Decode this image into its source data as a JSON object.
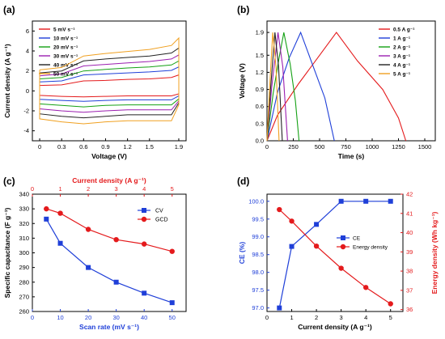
{
  "chart_data": [
    {
      "panel": "(a)",
      "type": "line",
      "xlabel": "Voltage (V)",
      "ylabel": "Current density (A g⁻¹)",
      "xlim": [
        -0.1,
        2.0
      ],
      "ylim": [
        -5,
        7
      ],
      "xticks": [
        "0",
        "0.3",
        "0.6",
        "0.9",
        "1.2",
        "1.5",
        "1.9"
      ],
      "xtick_values": [
        0,
        0.3,
        0.6,
        0.9,
        1.2,
        1.5,
        1.9
      ],
      "yticks": [
        -4,
        -2,
        0,
        2,
        4,
        6
      ],
      "legend_position": "top-left",
      "series": [
        {
          "name": "5 mV s⁻¹",
          "color": "#e41a1c",
          "upper": [
            [
              0,
              0.55
            ],
            [
              0.3,
              0.6
            ],
            [
              0.6,
              1.0
            ],
            [
              0.9,
              1.05
            ],
            [
              1.2,
              1.15
            ],
            [
              1.5,
              1.2
            ],
            [
              1.8,
              1.35
            ],
            [
              1.9,
              1.6
            ]
          ],
          "lower": [
            [
              1.9,
              -0.3
            ],
            [
              1.8,
              -0.5
            ],
            [
              1.5,
              -0.5
            ],
            [
              1.2,
              -0.5
            ],
            [
              0.9,
              -0.55
            ],
            [
              0.6,
              -0.6
            ],
            [
              0.3,
              -0.55
            ],
            [
              0,
              -0.45
            ]
          ]
        },
        {
          "name": "10 mV s⁻¹",
          "color": "#1f3fd8",
          "upper": [
            [
              0,
              0.9
            ],
            [
              0.3,
              1.0
            ],
            [
              0.6,
              1.6
            ],
            [
              0.9,
              1.7
            ],
            [
              1.2,
              1.8
            ],
            [
              1.5,
              1.9
            ],
            [
              1.8,
              2.05
            ],
            [
              1.9,
              2.4
            ]
          ],
          "lower": [
            [
              1.9,
              -0.5
            ],
            [
              1.8,
              -0.9
            ],
            [
              1.5,
              -0.9
            ],
            [
              1.2,
              -0.9
            ],
            [
              0.9,
              -0.95
            ],
            [
              0.6,
              -1.05
            ],
            [
              0.3,
              -0.95
            ],
            [
              0,
              -0.85
            ]
          ]
        },
        {
          "name": "20 mV s⁻¹",
          "color": "#14a114",
          "upper": [
            [
              0,
              1.2
            ],
            [
              0.3,
              1.35
            ],
            [
              0.6,
              2.0
            ],
            [
              0.9,
              2.15
            ],
            [
              1.2,
              2.3
            ],
            [
              1.5,
              2.4
            ],
            [
              1.8,
              2.6
            ],
            [
              1.9,
              3.0
            ]
          ],
          "lower": [
            [
              1.9,
              -0.8
            ],
            [
              1.8,
              -1.4
            ],
            [
              1.5,
              -1.4
            ],
            [
              1.2,
              -1.4
            ],
            [
              0.9,
              -1.45
            ],
            [
              0.6,
              -1.6
            ],
            [
              0.3,
              -1.45
            ],
            [
              0,
              -1.3
            ]
          ]
        },
        {
          "name": "30 mV s⁻¹",
          "color": "#9b1fb0",
          "upper": [
            [
              0,
              1.5
            ],
            [
              0.3,
              1.7
            ],
            [
              0.6,
              2.5
            ],
            [
              0.9,
              2.65
            ],
            [
              1.2,
              2.8
            ],
            [
              1.5,
              2.95
            ],
            [
              1.8,
              3.2
            ],
            [
              1.9,
              3.6
            ]
          ],
          "lower": [
            [
              1.9,
              -1.0
            ],
            [
              1.8,
              -1.9
            ],
            [
              1.5,
              -1.9
            ],
            [
              1.2,
              -1.9
            ],
            [
              0.9,
              -2.0
            ],
            [
              0.6,
              -2.15
            ],
            [
              0.3,
              -2.0
            ],
            [
              0,
              -1.8
            ]
          ]
        },
        {
          "name": "40 mV s⁻¹",
          "color": "#222222",
          "upper": [
            [
              0,
              1.8
            ],
            [
              0.3,
              2.0
            ],
            [
              0.6,
              3.0
            ],
            [
              0.9,
              3.2
            ],
            [
              1.2,
              3.35
            ],
            [
              1.5,
              3.5
            ],
            [
              1.8,
              3.8
            ],
            [
              1.9,
              4.3
            ]
          ],
          "lower": [
            [
              1.9,
              -1.2
            ],
            [
              1.8,
              -2.4
            ],
            [
              1.5,
              -2.4
            ],
            [
              1.2,
              -2.4
            ],
            [
              0.9,
              -2.55
            ],
            [
              0.6,
              -2.7
            ],
            [
              0.3,
              -2.55
            ],
            [
              0,
              -2.3
            ]
          ]
        },
        {
          "name": "50 mV s⁻¹",
          "color": "#f0a020",
          "upper": [
            [
              0,
              2.1
            ],
            [
              0.3,
              2.35
            ],
            [
              0.6,
              3.5
            ],
            [
              0.9,
              3.75
            ],
            [
              1.2,
              3.95
            ],
            [
              1.5,
              4.15
            ],
            [
              1.8,
              4.55
            ],
            [
              1.9,
              5.3
            ]
          ],
          "lower": [
            [
              1.9,
              -1.4
            ],
            [
              1.8,
              -3.0
            ],
            [
              1.5,
              -3.0
            ],
            [
              1.2,
              -3.0
            ],
            [
              0.9,
              -3.1
            ],
            [
              0.6,
              -3.3
            ],
            [
              0.3,
              -3.1
            ],
            [
              0,
              -2.8
            ]
          ]
        }
      ]
    },
    {
      "panel": "(b)",
      "type": "line",
      "xlabel": "Time (s)",
      "ylabel": "Voltage (V)",
      "xlim": [
        0,
        1600
      ],
      "ylim": [
        0,
        2.1
      ],
      "xticks": [
        0,
        250,
        500,
        750,
        1000,
        1250,
        1500
      ],
      "yticks": [
        "0.0",
        "0.3",
        "0.6",
        "0.9",
        "1.2",
        "1.5",
        "1.9"
      ],
      "ytick_values": [
        0,
        0.3,
        0.6,
        0.9,
        1.2,
        1.5,
        1.9
      ],
      "legend_position": "top-right",
      "series": [
        {
          "name": "0.5 A g⁻¹",
          "color": "#e41a1c",
          "points": [
            [
              0,
              0
            ],
            [
              100,
              0.45
            ],
            [
              300,
              1.0
            ],
            [
              500,
              1.5
            ],
            [
              660,
              1.9
            ],
            [
              860,
              1.4
            ],
            [
              1100,
              0.9
            ],
            [
              1250,
              0.4
            ],
            [
              1320,
              0
            ]
          ]
        },
        {
          "name": "1 A g⁻¹",
          "color": "#1f3fd8",
          "points": [
            [
              0,
              0
            ],
            [
              100,
              0.85
            ],
            [
              210,
              1.45
            ],
            [
              320,
              1.9
            ],
            [
              430,
              1.35
            ],
            [
              550,
              0.75
            ],
            [
              640,
              0
            ]
          ]
        },
        {
          "name": "2 A g⁻¹",
          "color": "#14a114",
          "points": [
            [
              0,
              0
            ],
            [
              60,
              0.85
            ],
            [
              115,
              1.45
            ],
            [
              160,
              1.9
            ],
            [
              220,
              1.35
            ],
            [
              270,
              0.7
            ],
            [
              305,
              0
            ]
          ]
        },
        {
          "name": "3 A g⁻¹",
          "color": "#9b1fb0",
          "points": [
            [
              0,
              0
            ],
            [
              45,
              0.95
            ],
            [
              105,
              1.9
            ],
            [
              150,
              1.3
            ],
            [
              195,
              0
            ]
          ]
        },
        {
          "name": "4 A g⁻¹",
          "color": "#222222",
          "points": [
            [
              0,
              0
            ],
            [
              35,
              0.95
            ],
            [
              75,
              1.9
            ],
            [
              110,
              1.3
            ],
            [
              145,
              0
            ]
          ]
        },
        {
          "name": "5 A g⁻¹",
          "color": "#f0a020",
          "points": [
            [
              0,
              0
            ],
            [
              25,
              0.95
            ],
            [
              55,
              1.9
            ],
            [
              85,
              1.3
            ],
            [
              115,
              0
            ]
          ]
        }
      ]
    },
    {
      "panel": "(c)",
      "type": "line",
      "xlabel": "Scan rate (mV s⁻¹)",
      "x2label": "Current density (A g⁻¹)",
      "ylabel": "Specific capacitance (F g⁻¹)",
      "xlim": [
        0,
        55
      ],
      "x2lim": [
        0,
        5.5
      ],
      "ylim": [
        260,
        340
      ],
      "xticks": [
        0,
        10,
        20,
        30,
        40,
        50
      ],
      "x2ticks": [
        0,
        1,
        2,
        3,
        4,
        5
      ],
      "yticks": [
        260,
        270,
        280,
        290,
        300,
        310,
        320,
        330,
        340
      ],
      "legend_position": "top-right",
      "series": [
        {
          "name": "CV",
          "axis": "bottom",
          "color": "#1f3fd8",
          "marker": "square",
          "x": [
            5,
            10,
            20,
            30,
            40,
            50
          ],
          "values": [
            323,
            306.5,
            290,
            280,
            272.5,
            266
          ]
        },
        {
          "name": "GCD",
          "axis": "top",
          "color": "#e41a1c",
          "marker": "circle",
          "x": [
            0.5,
            1,
            2,
            3,
            4,
            5
          ],
          "values": [
            330,
            327,
            316,
            309,
            306,
            301
          ]
        }
      ]
    },
    {
      "panel": "(d)",
      "type": "line",
      "xlabel": "Current density (A g⁻¹)",
      "ylabel": "CE (%)",
      "y2label": "Energy density (Wh kg⁻¹)",
      "xlim": [
        0,
        5.5
      ],
      "ylim": [
        96.9,
        100.2
      ],
      "y2lim": [
        35.9,
        42
      ],
      "xticks": [
        0,
        1,
        2,
        3,
        4,
        5
      ],
      "yticks": [
        "97.0",
        "97.5",
        "98.0",
        "98.5",
        "99.0",
        "99.5",
        "100.0"
      ],
      "ytick_values": [
        97.0,
        97.5,
        98.0,
        98.5,
        99.0,
        99.5,
        100.0
      ],
      "y2ticks": [
        36,
        37,
        38,
        39,
        40,
        41,
        42
      ],
      "legend_position": "top-right",
      "series": [
        {
          "name": "CE",
          "axis": "left",
          "color": "#1f3fd8",
          "marker": "square",
          "x": [
            0.5,
            1,
            2,
            3,
            4,
            5
          ],
          "values": [
            97.0,
            98.73,
            99.35,
            100.0,
            100.0,
            100.0
          ]
        },
        {
          "name": "Energy density",
          "axis": "right",
          "color": "#e41a1c",
          "marker": "circle",
          "x": [
            0.5,
            1,
            2,
            3,
            4,
            5
          ],
          "values": [
            41.2,
            40.6,
            39.3,
            38.15,
            37.15,
            36.3
          ]
        }
      ]
    }
  ]
}
